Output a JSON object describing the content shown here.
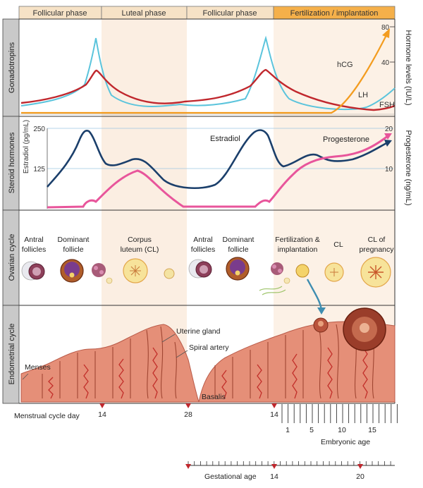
{
  "phases": [
    {
      "label": "Follicular phase"
    },
    {
      "label": "Luteal phase"
    },
    {
      "label": "Follicular phase"
    },
    {
      "label": "Fertilization / implantation"
    }
  ],
  "panels": [
    {
      "label": "Gonadotropins"
    },
    {
      "label": "Steroid hormones"
    },
    {
      "label": "Ovarian cycle"
    },
    {
      "label": "Endometrial cycle"
    }
  ],
  "gonadotropins": {
    "right_axis_title": "Hormone levels (IU/L)",
    "ticks": [
      "80",
      "40"
    ],
    "curves": {
      "hcg": "hCG",
      "lh": "LH",
      "fsh": "FSH"
    }
  },
  "steroids": {
    "left_axis_title": "Estradiol (pg/mL)",
    "left_ticks": [
      "250",
      "125"
    ],
    "right_axis_title": "Progesterone (ng/mL)",
    "right_ticks": [
      "20",
      "10"
    ],
    "curves": {
      "estradiol": "Estradiol",
      "progesterone": "Progesterone"
    }
  },
  "ovarian": {
    "labels": {
      "antral1": "Antral follicles",
      "dominant1": "Dominant follicle",
      "cl1": "Corpus luteum (CL)",
      "antral2": "Antral follicles",
      "dominant2": "Dominant follicle",
      "fert": "Fertilization & implantation",
      "cl2": "CL",
      "clp": "CL of pregnancy"
    }
  },
  "endometrial": {
    "labels": {
      "menses": "Menses",
      "gland": "Uterine gland",
      "spiral": "Spiral artery",
      "basalis": "Basalis"
    }
  },
  "timeline": {
    "menstrual_label": "Menstrual cycle day",
    "menstrual_days": [
      "14",
      "28",
      "14"
    ],
    "embryonic_ticks": [
      "1",
      "5",
      "10",
      "15"
    ],
    "embryonic_label": "Embryonic age",
    "gestational_ticks": [
      "14",
      "20"
    ],
    "gestational_label": "Gestational age"
  },
  "colors": {
    "lh": "#c0272d",
    "fsh": "#5bc4dc",
    "hcg": "#f39c1f",
    "estradiol": "#1b3f6b",
    "progesterone": "#e8559b",
    "phase_bar": "#f6e2c6",
    "phase_bar_active": "#f5b04a",
    "luteal_shade": "#fbeee2",
    "tissue": "#e58f78",
    "tissue_dark": "#b95a48",
    "artery": "#c22f2a",
    "marker": "#c0272d"
  }
}
